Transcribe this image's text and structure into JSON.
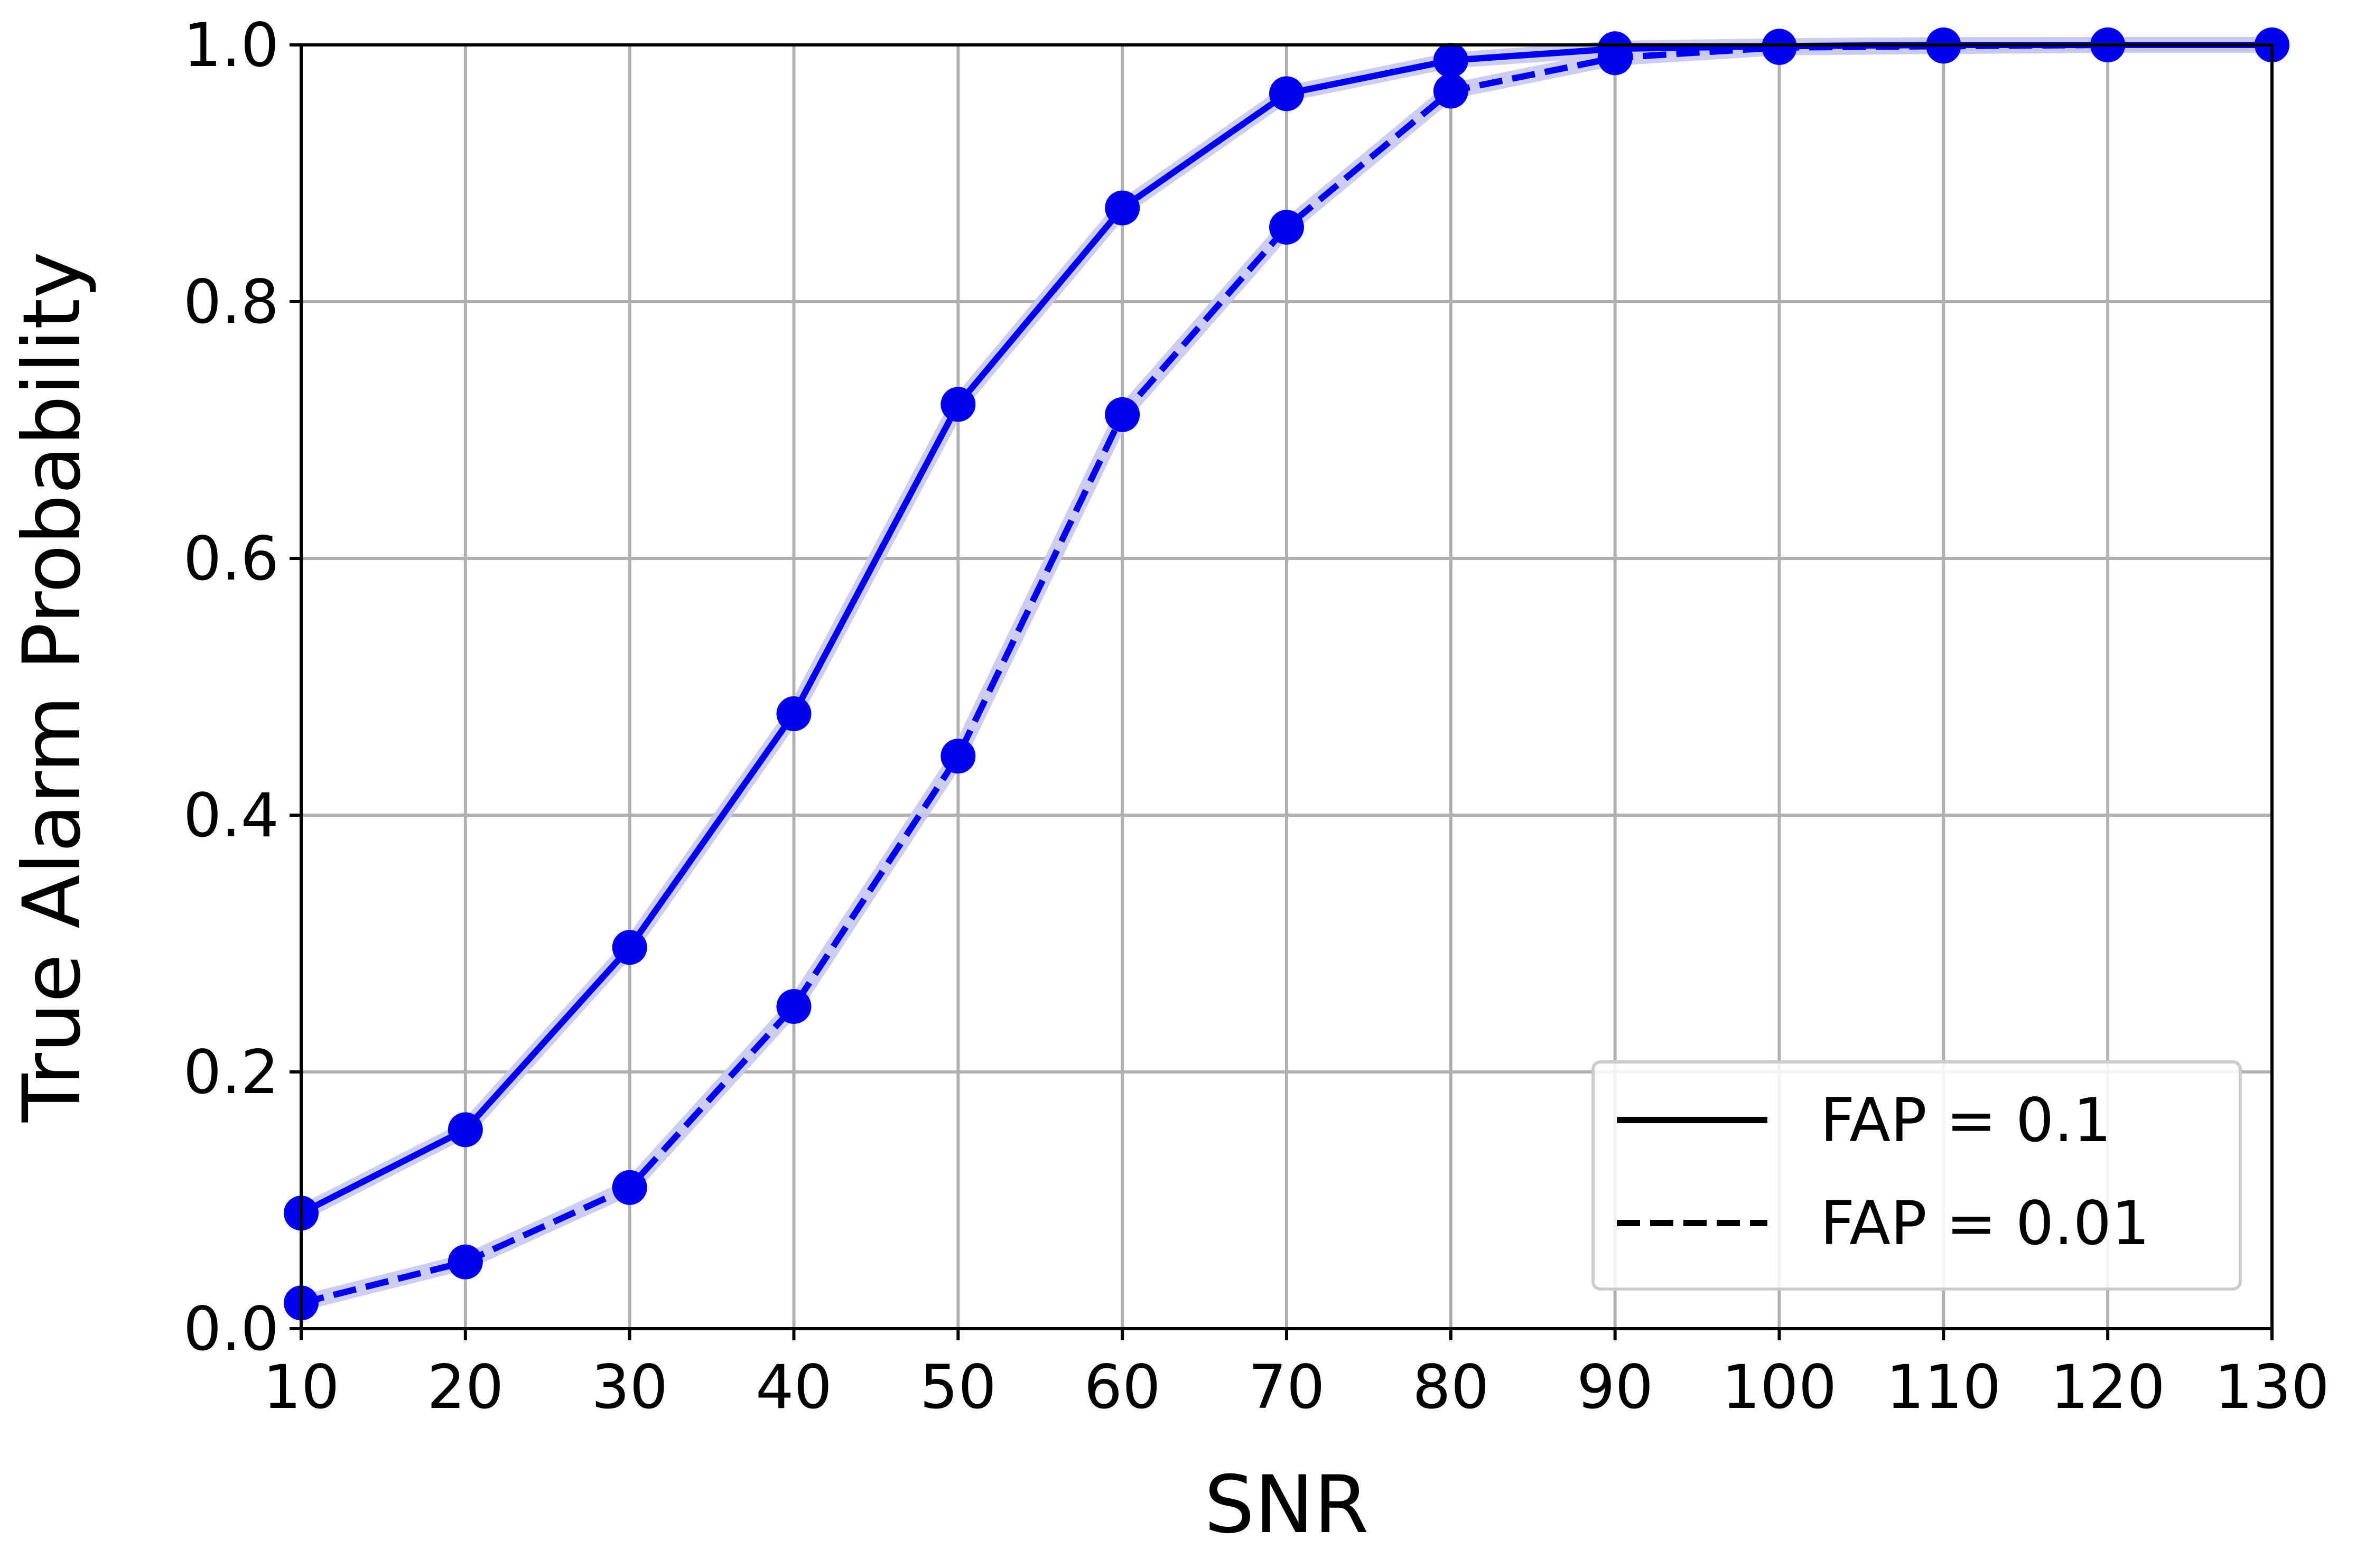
{
  "chart_data": {
    "type": "line",
    "xlabel": "SNR",
    "ylabel": "True Alarm Probability",
    "x": [
      10,
      20,
      30,
      40,
      50,
      60,
      70,
      80,
      90,
      100,
      110,
      120,
      130
    ],
    "xlim": [
      10,
      130
    ],
    "ylim": [
      0.0,
      1.0
    ],
    "xticks": [
      "10",
      "20",
      "30",
      "40",
      "50",
      "60",
      "70",
      "80",
      "90",
      "100",
      "110",
      "120",
      "130"
    ],
    "yticks": [
      "0.0",
      "0.2",
      "0.4",
      "0.6",
      "0.8",
      "1.0"
    ],
    "grid": true,
    "legend_position": "lower-right",
    "series": [
      {
        "name": "FAP = 0.1",
        "line_style": "solid",
        "color": "#0000ee",
        "band_color": "#c8c8f0",
        "values": [
          0.09,
          0.155,
          0.297,
          0.479,
          0.72,
          0.873,
          0.962,
          0.988,
          0.997,
          0.999,
          1.0,
          1.0,
          1.0
        ]
      },
      {
        "name": "FAP = 0.01",
        "line_style": "dashed",
        "color": "#0000ee",
        "band_color": "#c8c8f0",
        "values": [
          0.02,
          0.052,
          0.11,
          0.251,
          0.446,
          0.712,
          0.858,
          0.964,
          0.99,
          0.998,
          0.999,
          1.0,
          1.0
        ]
      }
    ]
  }
}
